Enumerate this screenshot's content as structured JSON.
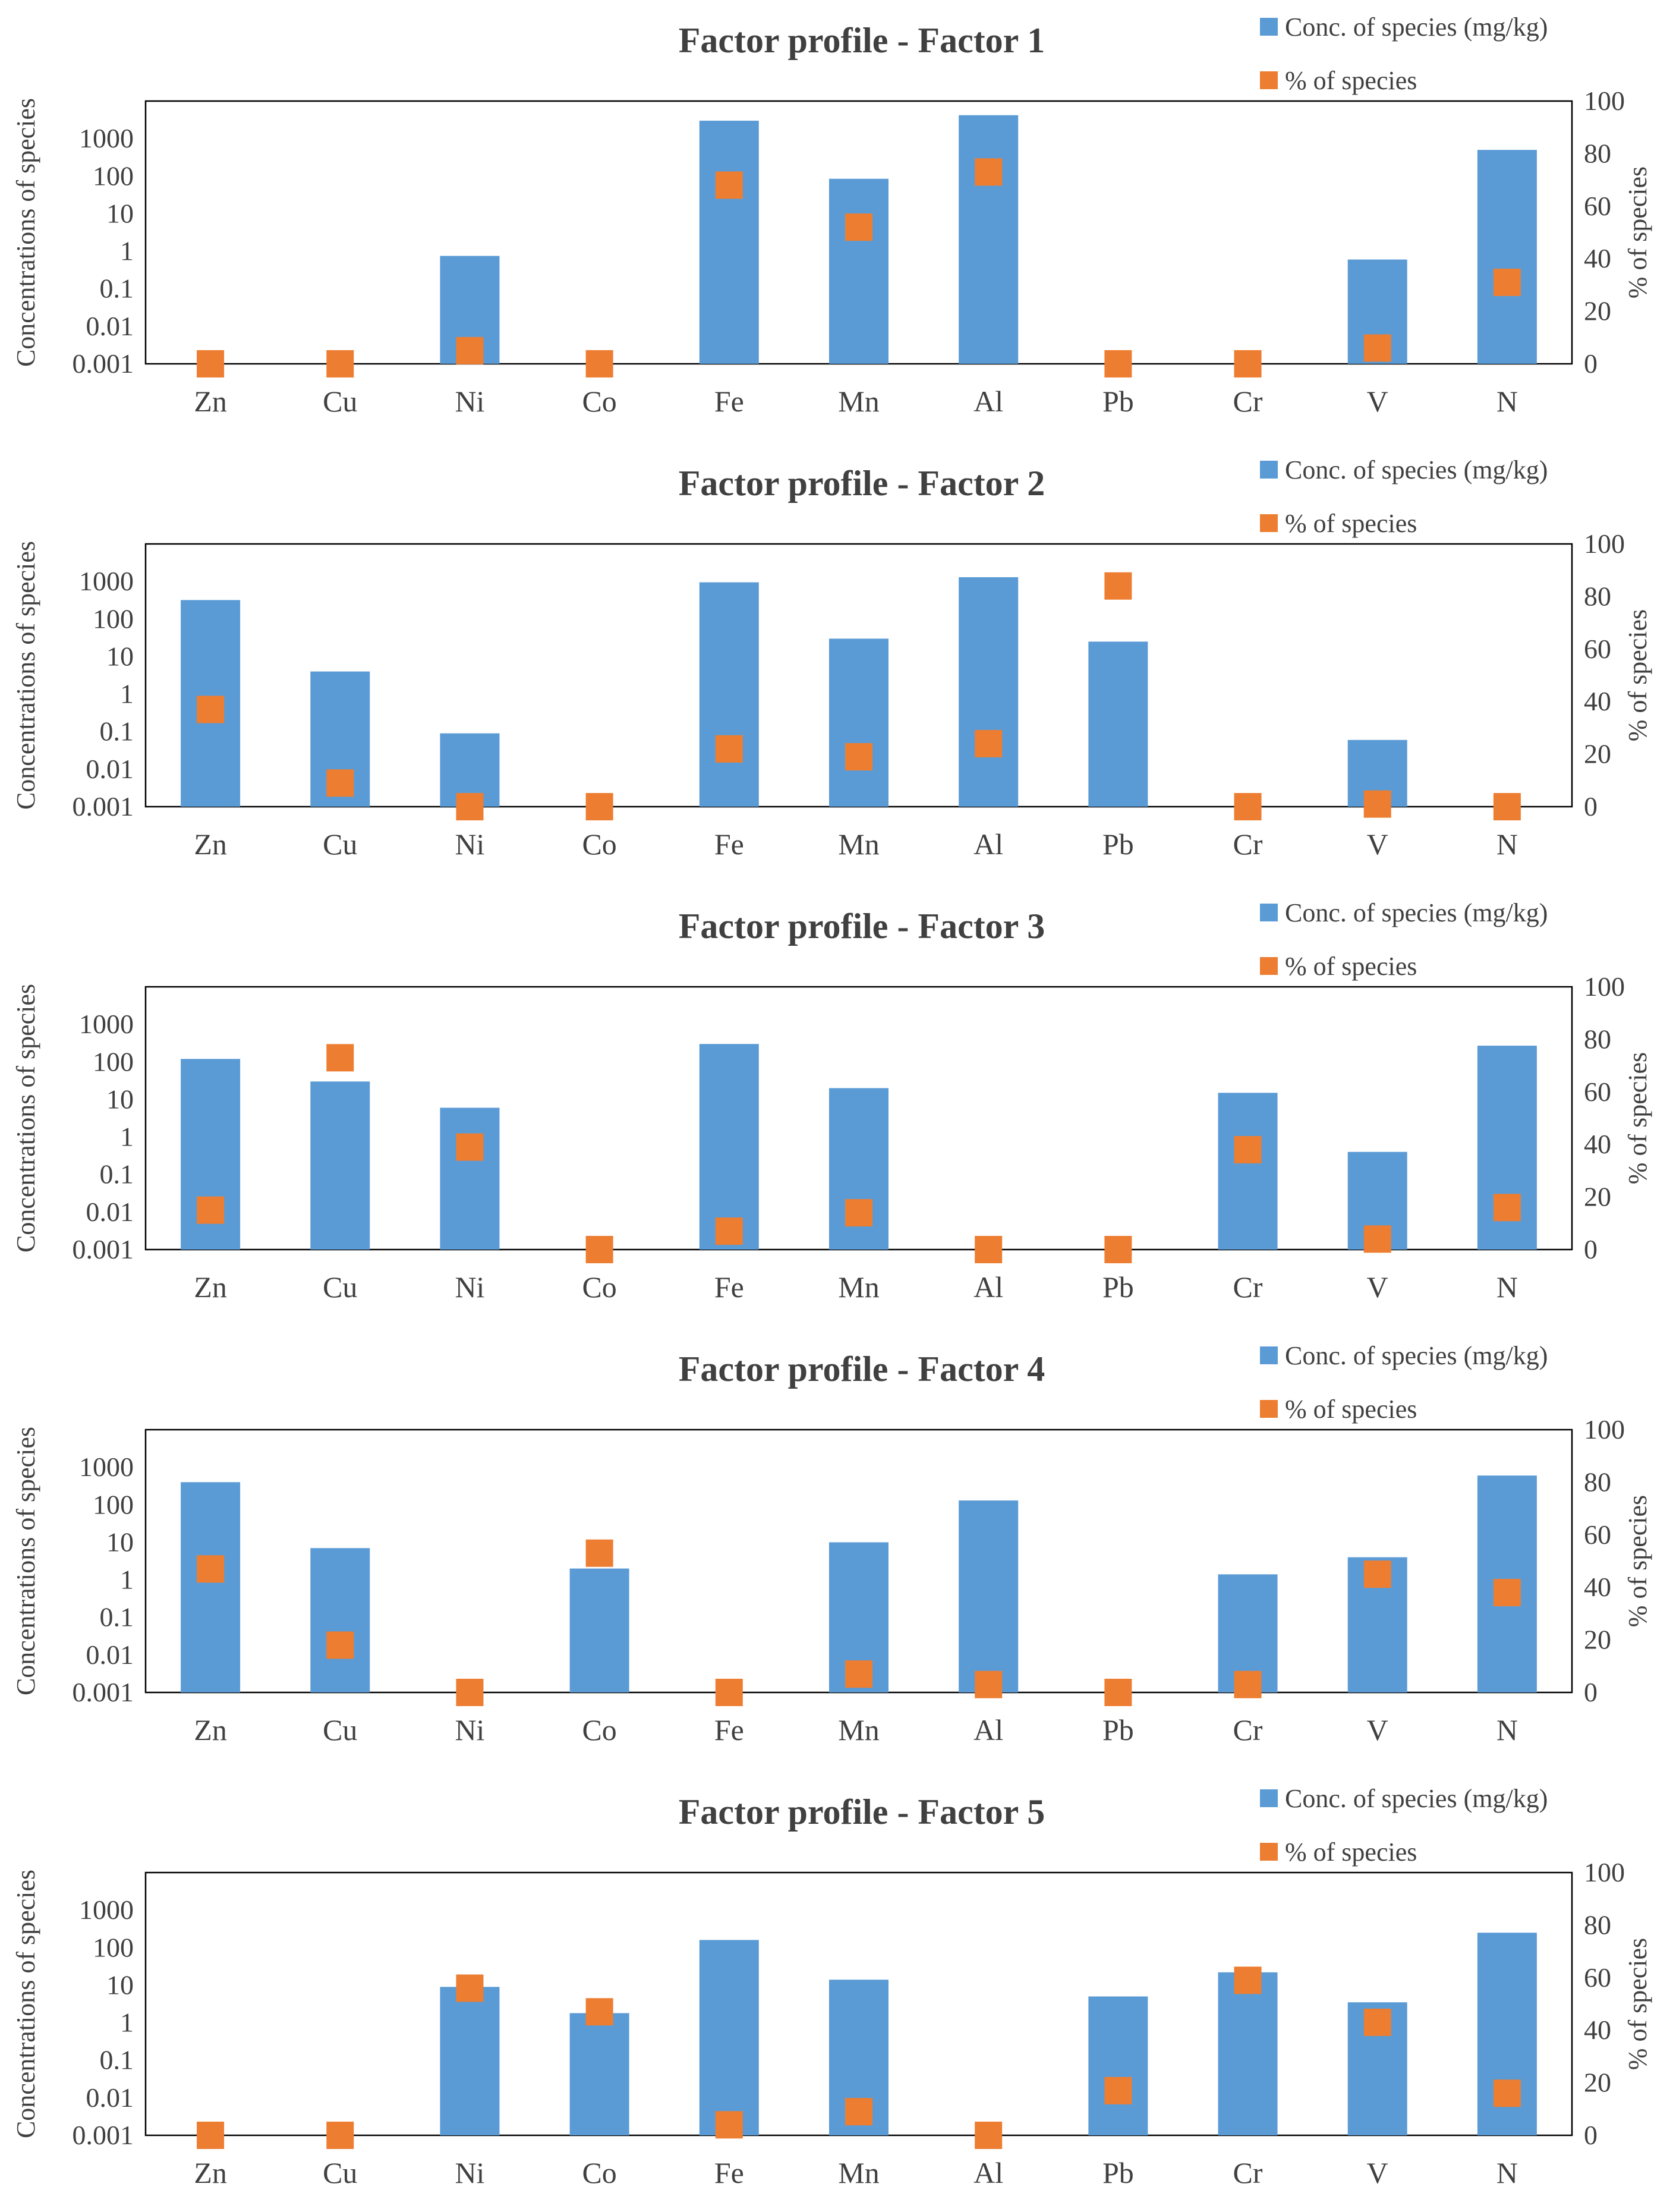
{
  "chart_data": [
    {
      "type": "bar",
      "title": "Factor profile - Factor 1",
      "categories": [
        "Zn",
        "Cu",
        "Ni",
        "Co",
        "Fe",
        "Mn",
        "Al",
        "Pb",
        "Cr",
        "V",
        "N"
      ],
      "series": [
        {
          "name": "Conc. of species (mg/kg)",
          "axis": "left",
          "kind": "bar",
          "color": "#5B9BD5",
          "values": [
            null,
            null,
            0.75,
            null,
            3000,
            85,
            4200,
            null,
            null,
            0.6,
            500
          ]
        },
        {
          "name": "% of species",
          "axis": "right",
          "kind": "marker",
          "color": "#ED7D31",
          "values": [
            0,
            0,
            5,
            0,
            68,
            52,
            73,
            0,
            0,
            6,
            31
          ]
        }
      ],
      "ylabel": "Concentrations of species",
      "y2label": "% of species",
      "yscale": "log",
      "ylim": [
        0.001,
        10000
      ],
      "yticks": [
        "0.001",
        "0.01",
        "0.1",
        "1",
        "10",
        "100",
        "1000"
      ],
      "y2lim": [
        0,
        100
      ],
      "y2ticks": [
        "0",
        "20",
        "40",
        "60",
        "80",
        "100"
      ],
      "legend_position": "top-right"
    },
    {
      "type": "bar",
      "title": "Factor profile - Factor 2",
      "categories": [
        "Zn",
        "Cu",
        "Ni",
        "Co",
        "Fe",
        "Mn",
        "Al",
        "Pb",
        "Cr",
        "V",
        "N"
      ],
      "series": [
        {
          "name": "Conc. of species (mg/kg)",
          "axis": "left",
          "kind": "bar",
          "color": "#5B9BD5",
          "values": [
            320,
            4,
            0.09,
            null,
            950,
            30,
            1300,
            25,
            null,
            0.06,
            null
          ]
        },
        {
          "name": "% of species",
          "axis": "right",
          "kind": "marker",
          "color": "#ED7D31",
          "values": [
            37,
            9,
            0,
            0,
            22,
            19,
            24,
            84,
            0,
            1,
            0
          ]
        }
      ],
      "ylabel": "Concentrations of species",
      "y2label": "% of species",
      "yscale": "log",
      "ylim": [
        0.001,
        10000
      ],
      "yticks": [
        "0.001",
        "0.01",
        "0.1",
        "1",
        "10",
        "100",
        "1000"
      ],
      "y2lim": [
        0,
        100
      ],
      "y2ticks": [
        "0",
        "20",
        "40",
        "60",
        "80",
        "100"
      ],
      "legend_position": "top-right"
    },
    {
      "type": "bar",
      "title": "Factor profile - Factor 3",
      "categories": [
        "Zn",
        "Cu",
        "Ni",
        "Co",
        "Fe",
        "Mn",
        "Al",
        "Pb",
        "Cr",
        "V",
        "N"
      ],
      "series": [
        {
          "name": "Conc. of species (mg/kg)",
          "axis": "left",
          "kind": "bar",
          "color": "#5B9BD5",
          "values": [
            120,
            30,
            6,
            null,
            300,
            20,
            null,
            null,
            15,
            0.4,
            270
          ]
        },
        {
          "name": "% of species",
          "axis": "right",
          "kind": "marker",
          "color": "#ED7D31",
          "values": [
            15,
            73,
            39,
            0,
            7,
            14,
            0,
            0,
            38,
            4,
            16
          ]
        }
      ],
      "ylabel": "Concentrations of species",
      "y2label": "% of species",
      "yscale": "log",
      "ylim": [
        0.001,
        10000
      ],
      "yticks": [
        "0.001",
        "0.01",
        "0.1",
        "1",
        "10",
        "100",
        "1000"
      ],
      "y2lim": [
        0,
        100
      ],
      "y2ticks": [
        "0",
        "20",
        "40",
        "60",
        "80",
        "100"
      ],
      "legend_position": "top-right"
    },
    {
      "type": "bar",
      "title": "Factor profile - Factor 4",
      "categories": [
        "Zn",
        "Cu",
        "Ni",
        "Co",
        "Fe",
        "Mn",
        "Al",
        "Pb",
        "Cr",
        "V",
        "N"
      ],
      "series": [
        {
          "name": "Conc. of species (mg/kg)",
          "axis": "left",
          "kind": "bar",
          "color": "#5B9BD5",
          "values": [
            400,
            7,
            null,
            2,
            null,
            10,
            130,
            null,
            1.4,
            4,
            600
          ]
        },
        {
          "name": "% of species",
          "axis": "right",
          "kind": "marker",
          "color": "#ED7D31",
          "values": [
            47,
            18,
            0,
            53,
            0,
            7,
            3,
            0,
            3,
            45,
            38
          ]
        }
      ],
      "ylabel": "Concentrations of species",
      "y2label": "% of species",
      "yscale": "log",
      "ylim": [
        0.001,
        10000
      ],
      "yticks": [
        "0.001",
        "0.01",
        "0.1",
        "1",
        "10",
        "100",
        "1000"
      ],
      "y2lim": [
        0,
        100
      ],
      "y2ticks": [
        "0",
        "20",
        "40",
        "60",
        "80",
        "100"
      ],
      "legend_position": "top-right"
    },
    {
      "type": "bar",
      "title": "Factor profile - Factor 5",
      "categories": [
        "Zn",
        "Cu",
        "Ni",
        "Co",
        "Fe",
        "Mn",
        "Al",
        "Pb",
        "Cr",
        "V",
        "N"
      ],
      "series": [
        {
          "name": "Conc. of species (mg/kg)",
          "axis": "left",
          "kind": "bar",
          "color": "#5B9BD5",
          "values": [
            null,
            null,
            9,
            1.8,
            160,
            14,
            null,
            5,
            22,
            3.5,
            250
          ]
        },
        {
          "name": "% of species",
          "axis": "right",
          "kind": "marker",
          "color": "#ED7D31",
          "values": [
            0,
            0,
            56,
            47,
            4,
            9,
            0,
            17,
            59,
            43,
            16
          ]
        }
      ],
      "ylabel": "Concentrations of species",
      "y2label": "% of species",
      "yscale": "log",
      "ylim": [
        0.001,
        10000
      ],
      "yticks": [
        "0.001",
        "0.01",
        "0.1",
        "1",
        "10",
        "100",
        "1000"
      ],
      "y2lim": [
        0,
        100
      ],
      "y2ticks": [
        "0",
        "20",
        "40",
        "60",
        "80",
        "100"
      ],
      "legend_position": "top-right"
    }
  ]
}
